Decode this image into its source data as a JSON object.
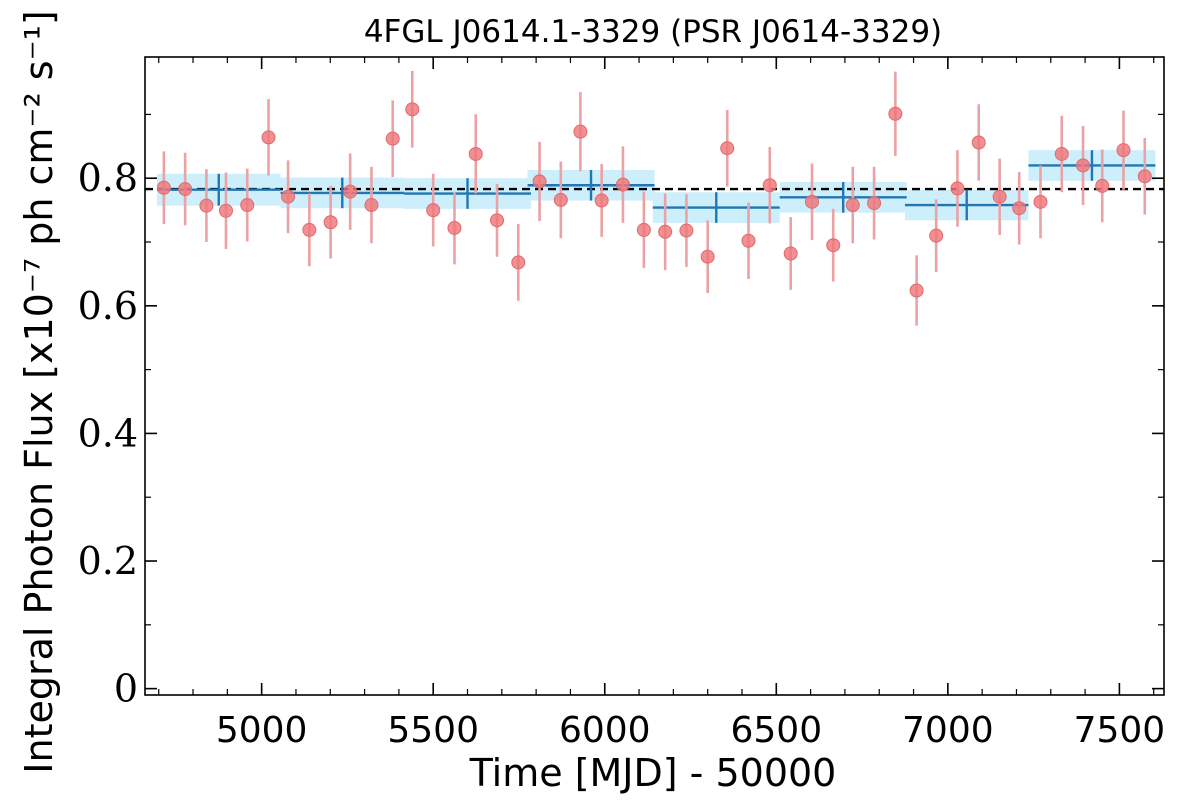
{
  "chart_data": {
    "type": "scatter",
    "title": "4FGL J0614.1-3329 (PSR J0614-3329)",
    "xlabel": "Time [MJD] - 50000",
    "ylabel": "Integral Photon Flux [x10⁻⁷ ph cm⁻² s⁻¹]",
    "xlim": [
      4660,
      7630
    ],
    "ylim": [
      -0.01,
      0.99
    ],
    "xticks": [
      5000,
      5500,
      6000,
      6500,
      7000,
      7500
    ],
    "xtick_labels": [
      "5000",
      "5500",
      "6000",
      "6500",
      "7000",
      "7500"
    ],
    "yticks": [
      0,
      0.2,
      0.4,
      0.6,
      0.8
    ],
    "ytick_labels": [
      "0",
      "0.2",
      "0.4",
      "0.6",
      "0.8"
    ],
    "mean_flux": 0.783,
    "grid": false,
    "short_bins": {
      "x": [
        4715,
        4777,
        4839,
        4896,
        4958,
        5020,
        5077,
        5139,
        5201,
        5258,
        5320,
        5382,
        5439,
        5500,
        5562,
        5624,
        5686,
        5748,
        5810,
        5872,
        5929,
        5991,
        6053,
        6114,
        6176,
        6238,
        6300,
        6357,
        6419,
        6481,
        6542,
        6604,
        6666,
        6723,
        6785,
        6847,
        6909,
        6966,
        7028,
        7090,
        7151,
        7208,
        7270,
        7332,
        7394,
        7450,
        7512,
        7574
      ],
      "y": [
        0.785,
        0.783,
        0.757,
        0.749,
        0.758,
        0.864,
        0.771,
        0.719,
        0.731,
        0.779,
        0.758,
        0.862,
        0.908,
        0.75,
        0.722,
        0.838,
        0.734,
        0.668,
        0.795,
        0.766,
        0.873,
        0.765,
        0.79,
        0.719,
        0.716,
        0.718,
        0.677,
        0.847,
        0.702,
        0.789,
        0.682,
        0.763,
        0.695,
        0.758,
        0.761,
        0.901,
        0.624,
        0.71,
        0.784,
        0.856,
        0.771,
        0.753,
        0.763,
        0.838,
        0.82,
        0.788,
        0.844,
        0.803
      ],
      "yerr": [
        0.057,
        0.057,
        0.057,
        0.06,
        0.057,
        0.06,
        0.057,
        0.057,
        0.057,
        0.06,
        0.06,
        0.06,
        0.06,
        0.057,
        0.057,
        0.062,
        0.057,
        0.06,
        0.062,
        0.06,
        0.062,
        0.057,
        0.06,
        0.06,
        0.06,
        0.057,
        0.057,
        0.06,
        0.06,
        0.06,
        0.057,
        0.06,
        0.057,
        0.06,
        0.057,
        0.066,
        0.055,
        0.057,
        0.06,
        0.06,
        0.06,
        0.057,
        0.057,
        0.06,
        0.062,
        0.057,
        0.062,
        0.06
      ]
    },
    "long_bins": {
      "x": [
        4875,
        5235,
        5600,
        5960,
        6325,
        6695,
        7055,
        7420
      ],
      "xerr": [
        180,
        180,
        185,
        185,
        185,
        185,
        180,
        185
      ],
      "y": [
        0.782,
        0.777,
        0.776,
        0.789,
        0.754,
        0.77,
        0.758,
        0.82
      ],
      "yerr": [
        0.025,
        0.024,
        0.024,
        0.024,
        0.024,
        0.024,
        0.024,
        0.024
      ]
    },
    "colors": {
      "short_marker": "#ef767a",
      "short_errbar": "#eba2a4",
      "long_line": "#2077b4",
      "long_band": "#cdeefb",
      "mean_line": "#000000"
    }
  }
}
